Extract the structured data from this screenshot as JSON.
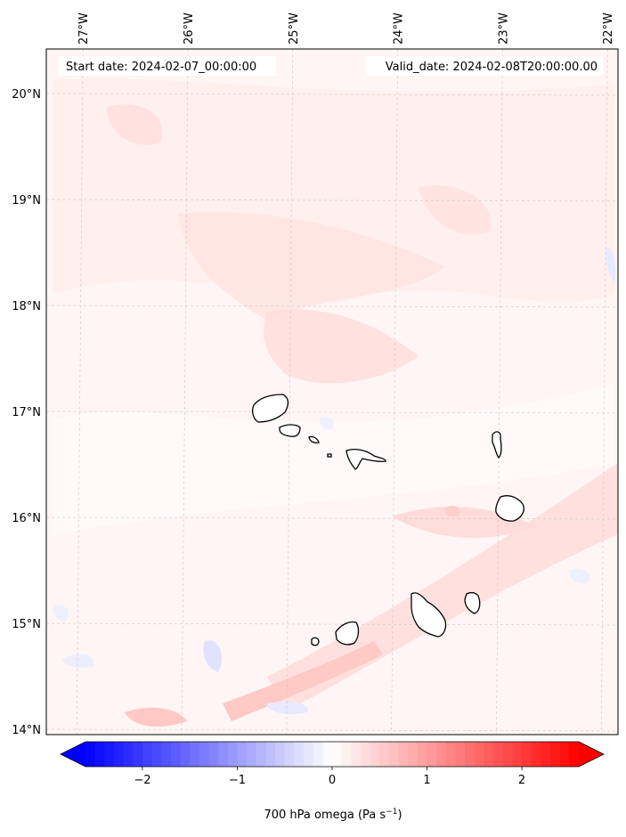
{
  "map": {
    "start_date": "Start date: 2024-02-07_00:00:00",
    "valid_date": "Valid_date: 2024-02-08T20:00:00.00",
    "lon_labels": [
      "27°W",
      "26°W",
      "25°W",
      "24°W",
      "23°W",
      "22°W"
    ],
    "lat_labels": [
      "20°N",
      "19°N",
      "18°N",
      "17°N",
      "16°N",
      "15°N",
      "14°N"
    ],
    "lon_values": [
      -27,
      -26,
      -25,
      -24,
      -23,
      -22
    ],
    "lat_values": [
      20,
      19,
      18,
      17,
      16,
      15,
      14
    ],
    "extent": {
      "lon_min": -27.35,
      "lon_max": -21.9,
      "lat_min": 13.95,
      "lat_max": 20.42
    }
  },
  "colorbar": {
    "label": "700 hPa omega (Pa s",
    "label_sup": "−1",
    "label_close": ")",
    "ticks": [
      "−2",
      "−1",
      "0",
      "1",
      "2"
    ],
    "tick_values": [
      -2,
      -1,
      0,
      1,
      2
    ],
    "vmin": -2.6,
    "vmax": 2.6,
    "cmap": "bwr",
    "neg_color": "#0000ff",
    "pos_color": "#ff0000"
  }
}
